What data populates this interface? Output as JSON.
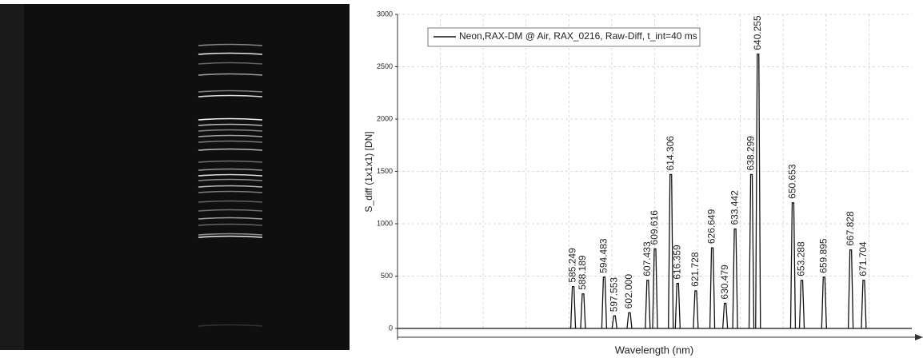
{
  "chart_data": {
    "type": "spectrum",
    "legend": "Neon,RAX-DM @ Air, RAX_0216, Raw-Diff, t_int=40 ms",
    "y_label": "S_diff (1x1x1) [DN]",
    "x_label": "Wavelength (nm)",
    "x": [
      585.249,
      588.189,
      594.483,
      597.553,
      602,
      607.433,
      609.616,
      614.306,
      616.359,
      621.728,
      626.649,
      630.479,
      633.442,
      638.299,
      640.255,
      650.653,
      653.288,
      659.895,
      667.828,
      671.704
    ],
    "x_labels": [
      "585.249",
      "588.189",
      "594.483",
      "597.553",
      "602.000",
      "607.433",
      "609.616",
      "614.306",
      "616.359",
      "621.728",
      "626.649",
      "630.479",
      "633.442",
      "638.299",
      "640.255",
      "650.653",
      "653.288",
      "659.895",
      "667.828",
      "671.704"
    ],
    "values": [
      400,
      330,
      490,
      120,
      150,
      460,
      760,
      1470,
      430,
      360,
      770,
      240,
      950,
      1470,
      2620,
      1200,
      460,
      490,
      750,
      460
    ],
    "color": "#111111",
    "xlim": [
      533,
      686
    ],
    "ylim": [
      0,
      3000
    ],
    "yticks": [
      0,
      500,
      1000,
      1500,
      2000,
      2500,
      3000
    ],
    "grid": true
  }
}
